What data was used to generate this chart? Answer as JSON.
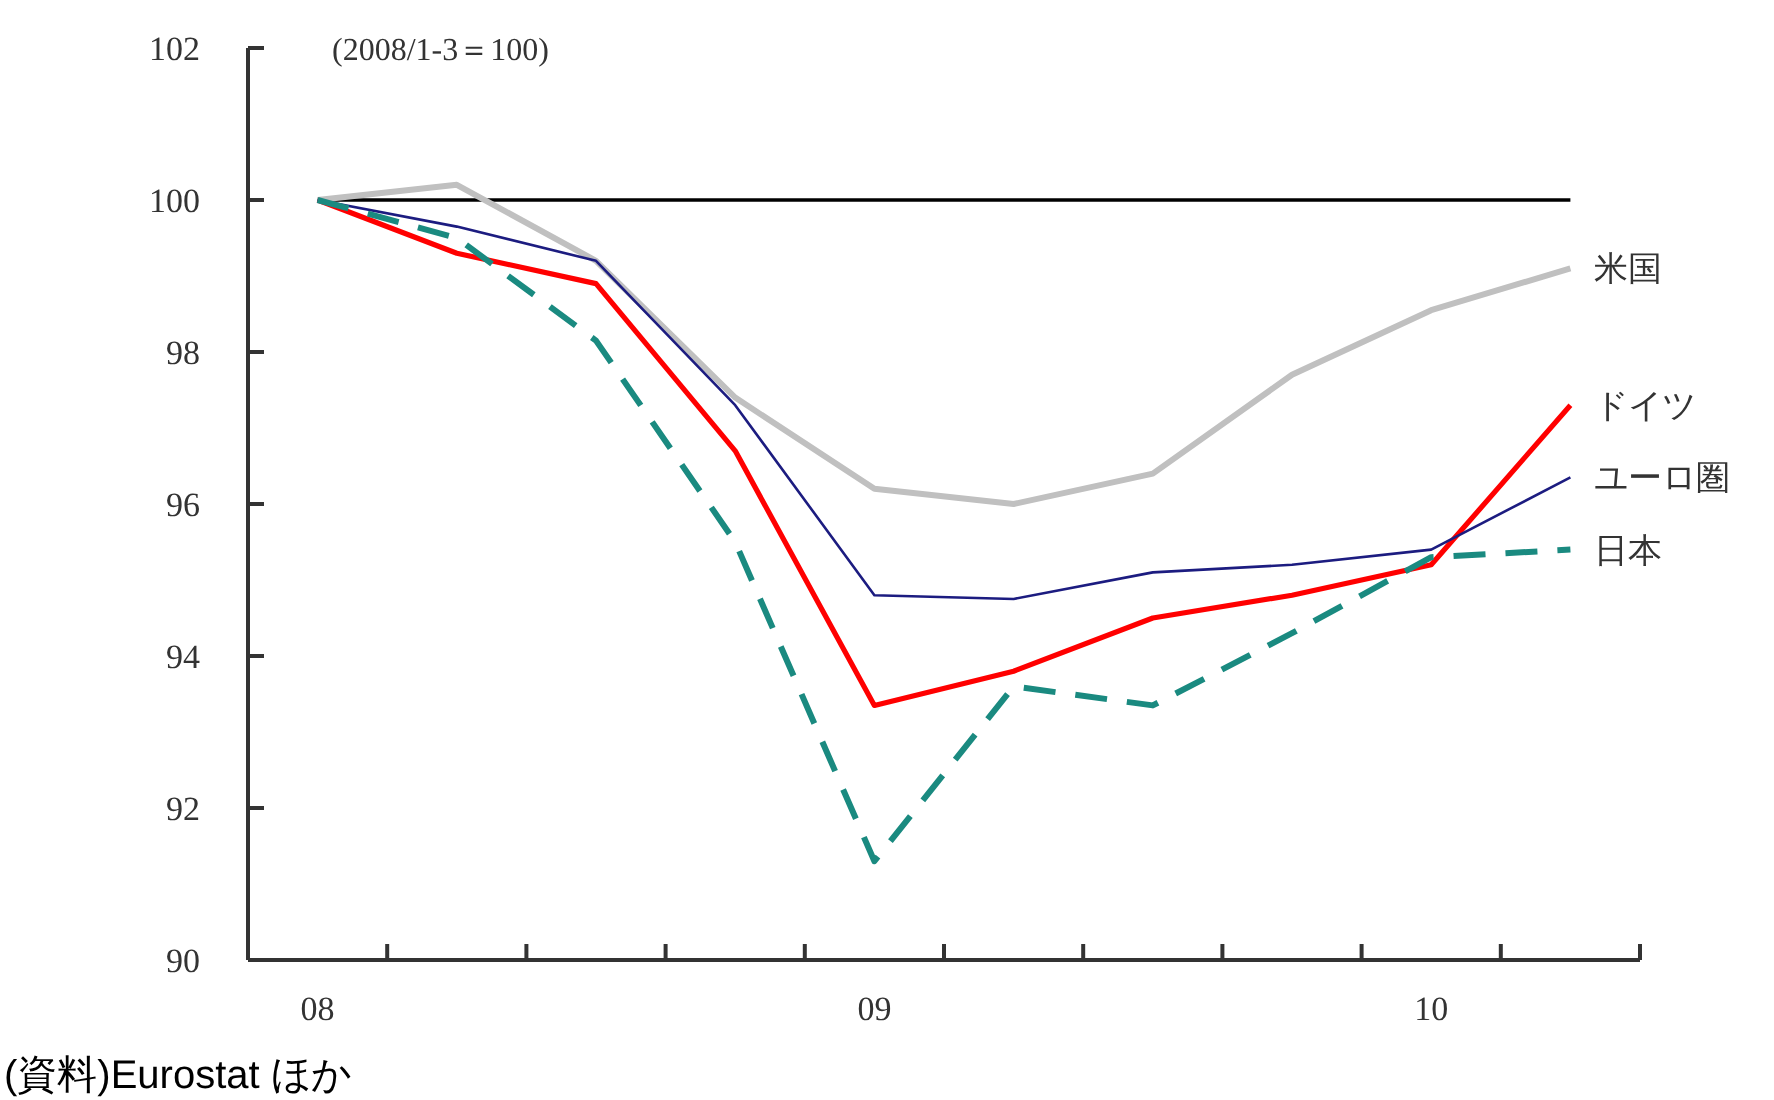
{
  "chart_data": {
    "type": "line",
    "categories": [
      "08",
      null,
      null,
      null,
      "09",
      null,
      null,
      null,
      "10",
      null
    ],
    "series": [
      {
        "name": "米国",
        "color": "#c0c0c0",
        "values": [
          100,
          100.2,
          99.2,
          97.4,
          96.2,
          96.0,
          96.4,
          97.7,
          98.55,
          99.1
        ]
      },
      {
        "name": "ドイツ",
        "color": "#ff0000",
        "values": [
          100,
          99.3,
          98.9,
          96.7,
          93.35,
          93.8,
          94.5,
          94.8,
          95.2,
          97.3
        ]
      },
      {
        "name": "ユーロ圏",
        "color": "#1c1c80",
        "values": [
          100,
          99.65,
          99.2,
          97.3,
          94.8,
          94.75,
          95.1,
          95.2,
          95.4,
          96.35
        ]
      },
      {
        "name": "日本",
        "color": "#1a8a80",
        "line_style": "dashed",
        "values": [
          100,
          99.5,
          98.15,
          95.5,
          91.3,
          93.6,
          93.35,
          94.3,
          95.3,
          95.4
        ]
      }
    ],
    "ylim": [
      90,
      102
    ],
    "yticks": [
      90,
      92,
      94,
      96,
      98,
      100,
      102
    ],
    "ref_lines": [
      {
        "axis": "y",
        "value": 100,
        "color": "#000000"
      }
    ],
    "grid": false,
    "marker": "none",
    "annotations": [
      "(2008/1-3＝100)",
      "(資料)Eurostat ほか"
    ]
  }
}
